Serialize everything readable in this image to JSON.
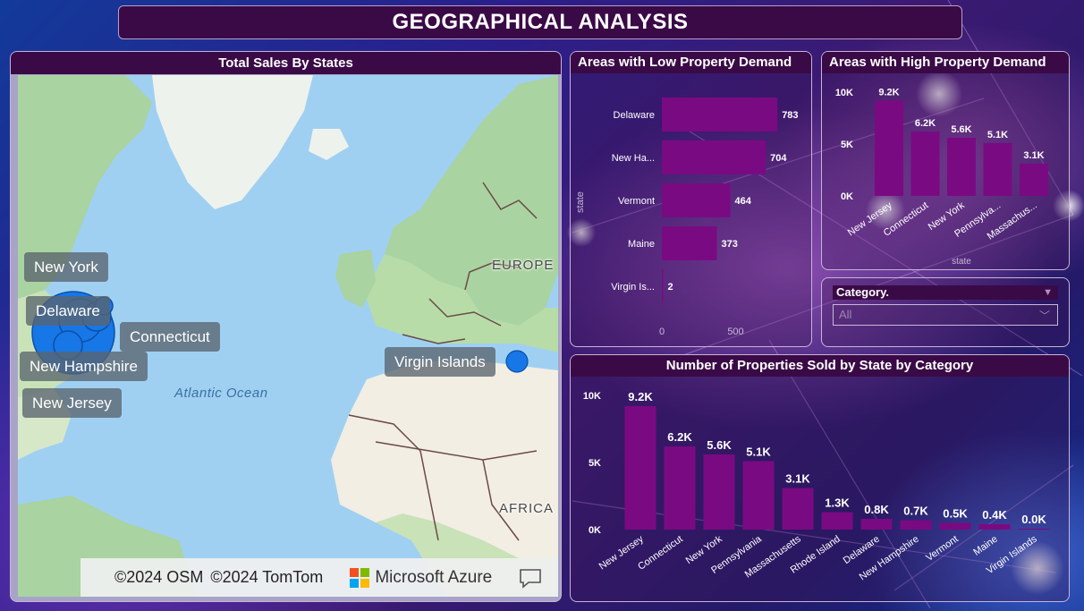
{
  "page": {
    "title": "GEOGRAPHICAL ANALYSIS"
  },
  "map": {
    "title": "Total Sales By States",
    "labels": [
      "New York",
      "Delaware",
      "Connecticut",
      "New Hampshire",
      "New Jersey",
      "Virgin Islands"
    ],
    "ocean_label": "Atlantic Ocean",
    "continent_labels": [
      "EUROPE",
      "AFRICA"
    ],
    "attribution_osm": "©2024 OSM",
    "attribution_tomtom": "©2024 TomTom",
    "provider": "Microsoft Azure",
    "colors": {
      "water": "#9fd0f2",
      "bubble": "#1877e6"
    }
  },
  "slicer": {
    "title": "Category.",
    "value": "All"
  },
  "chart_data": [
    {
      "type": "bar",
      "orientation": "horizontal",
      "title": "Areas with Low Property Demand",
      "ylabel": "state",
      "categories": [
        "Delaware",
        "New Ha...",
        "Vermont",
        "Maine",
        "Virgin Is..."
      ],
      "values": [
        783,
        704,
        464,
        373,
        2
      ],
      "value_labels": [
        "783",
        "704",
        "464",
        "373",
        "2"
      ],
      "xlim": [
        0,
        800
      ],
      "x_ticks": [
        "0",
        "500"
      ],
      "color": "#7a0a82"
    },
    {
      "type": "bar",
      "title": "Areas with High Property Demand",
      "xlabel": "state",
      "categories": [
        "New Jersey",
        "Connecticut",
        "New York",
        "Pennsylva...",
        "Massachus..."
      ],
      "values": [
        9200,
        6200,
        5600,
        5100,
        3100
      ],
      "value_labels": [
        "9.2K",
        "6.2K",
        "5.6K",
        "5.1K",
        "3.1K"
      ],
      "ylim": [
        0,
        10000
      ],
      "y_ticks": [
        "0K",
        "5K",
        "10K"
      ],
      "color": "#7a0a82"
    },
    {
      "type": "bar",
      "title": "Number of Properties Sold by State by Category",
      "categories": [
        "New Jersey",
        "Connecticut",
        "New York",
        "Pennsylvania",
        "Massachusetts",
        "Rhode Island",
        "Delaware",
        "New Hampshire",
        "Vermont",
        "Maine",
        "Virgin Islands"
      ],
      "values": [
        9200,
        6200,
        5600,
        5100,
        3100,
        1300,
        800,
        700,
        500,
        400,
        0
      ],
      "value_labels": [
        "9.2K",
        "6.2K",
        "5.6K",
        "5.1K",
        "3.1K",
        "1.3K",
        "0.8K",
        "0.7K",
        "0.5K",
        "0.4K",
        "0.0K"
      ],
      "ylim": [
        0,
        10000
      ],
      "y_ticks": [
        "0K",
        "5K",
        "10K"
      ],
      "color": "#7a0a82"
    }
  ]
}
